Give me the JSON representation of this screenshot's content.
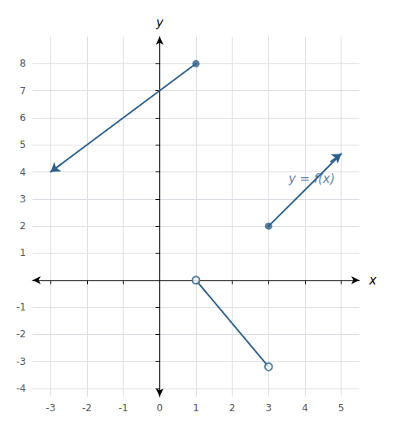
{
  "chart_data": {
    "type": "line",
    "xlabel": "x",
    "ylabel": "y",
    "xlim": [
      -3.5,
      5.5
    ],
    "ylim": [
      -4.3,
      9.0
    ],
    "xticks": [
      -3,
      -2,
      -1,
      0,
      1,
      2,
      3,
      4,
      5
    ],
    "yticks": [
      -4,
      -3,
      -2,
      -1,
      1,
      2,
      3,
      4,
      5,
      6,
      7,
      8
    ],
    "grid": true,
    "color": "#2e5f8a",
    "series": [
      {
        "type": "line",
        "x": [
          -3,
          1
        ],
        "values": [
          4,
          8
        ]
      },
      {
        "type": "line",
        "x": [
          1,
          3
        ],
        "values": [
          0,
          -3.2
        ]
      },
      {
        "type": "line",
        "x": [
          3,
          5
        ],
        "values": [
          2,
          4.67
        ]
      },
      {
        "type": "scatter",
        "marker": "circle",
        "x": [
          1,
          3
        ],
        "values": [
          8,
          2
        ]
      },
      {
        "type": "scatter",
        "marker": "open_circle",
        "x": [
          1,
          3
        ],
        "values": [
          0,
          -3.2
        ]
      }
    ],
    "arrows": [
      {
        "from": [
          -2.7,
          4.3
        ],
        "to": [
          -3.0,
          4.0
        ]
      },
      {
        "from": [
          4.7,
          4.37
        ],
        "to": [
          5.0,
          4.67
        ]
      }
    ],
    "annotations": [
      {
        "text": "y = f(x)",
        "x": 3.55,
        "y": 3.5
      }
    ]
  }
}
